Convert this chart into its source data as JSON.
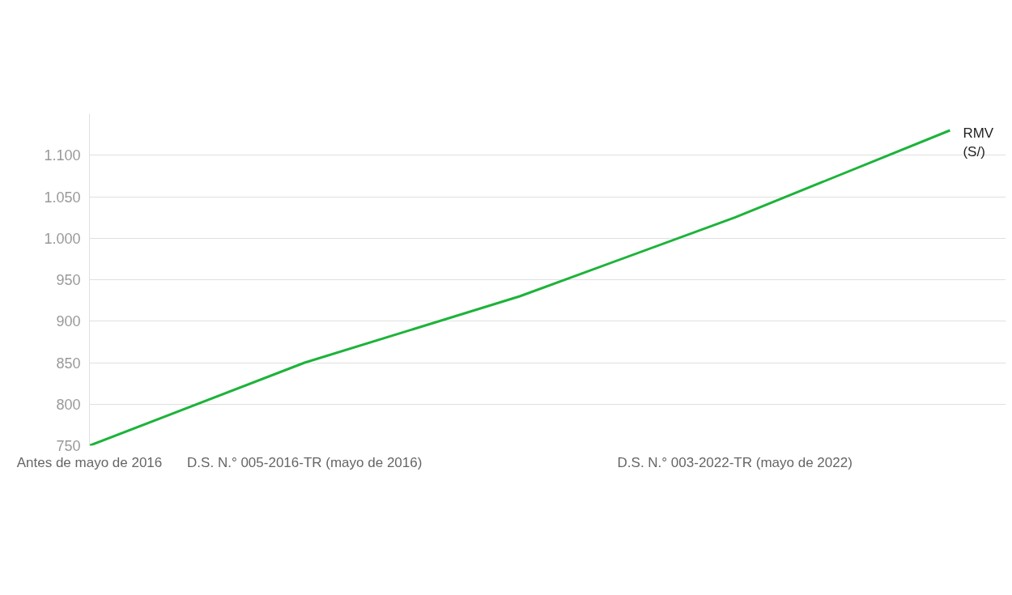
{
  "chart_data": {
    "type": "line",
    "categories": [
      "Antes de mayo de 2016",
      "D.S. N.° 005-2016-TR (mayo de 2016)",
      null,
      "D.S. N.° 003-2022-TR (mayo de 2022)",
      null
    ],
    "series": [
      {
        "name": "RMV (S/)",
        "color": "#1db33a",
        "values": [
          750,
          850,
          930,
          1025,
          1130
        ]
      }
    ],
    "ylim": [
      750,
      1150
    ],
    "yticks": [
      750,
      800,
      850,
      900,
      950,
      {
        "value": 1000,
        "label": "1.000"
      },
      {
        "value": 1050,
        "label": "1.050"
      },
      {
        "value": 1100,
        "label": "1.100"
      }
    ],
    "grid": "y",
    "marker": "none",
    "line_style": "solid"
  }
}
